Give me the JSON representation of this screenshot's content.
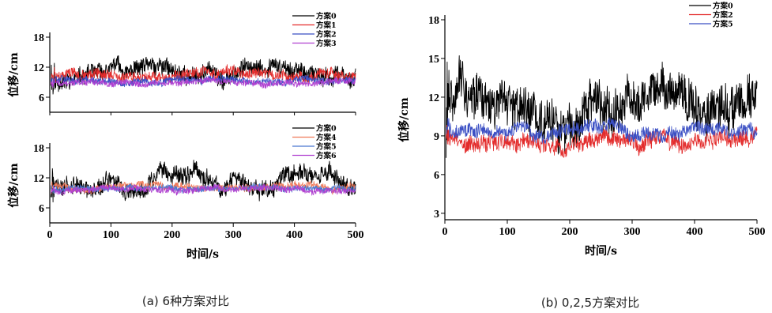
{
  "chart_data": [
    {
      "panel": "a-top",
      "type": "line",
      "xlabel": "",
      "ylabel": "位移/cm",
      "xlim": [
        0,
        500
      ],
      "ylim": [
        3,
        18
      ],
      "yticks": [
        6,
        12,
        18
      ],
      "xticks": [],
      "legend": "top-right",
      "series": [
        {
          "name": "方案0",
          "color": "#000000",
          "mean": 11.0,
          "amp": 2.2,
          "jitter": 1.6,
          "seed": 11
        },
        {
          "name": "方案1",
          "color": "#e32c2c",
          "mean": 10.5,
          "amp": 1.0,
          "jitter": 1.0,
          "seed": 12
        },
        {
          "name": "方案2",
          "color": "#3b4fc4",
          "mean": 9.3,
          "amp": 0.5,
          "jitter": 0.7,
          "seed": 13
        },
        {
          "name": "方案3",
          "color": "#b040d0",
          "mean": 8.9,
          "amp": 0.5,
          "jitter": 0.6,
          "seed": 14
        }
      ]
    },
    {
      "panel": "a-bottom",
      "type": "line",
      "xlabel": "时间/s",
      "ylabel": "位移/cm",
      "xlim": [
        0,
        500
      ],
      "ylim": [
        3,
        18
      ],
      "yticks": [
        6,
        12,
        18
      ],
      "xticks": [
        0,
        100,
        200,
        300,
        400,
        500
      ],
      "legend": "top-right",
      "series": [
        {
          "name": "方案0",
          "color": "#000000",
          "mean": 11.0,
          "amp": 2.2,
          "jitter": 1.6,
          "seed": 21
        },
        {
          "name": "方案4",
          "color": "#f07a5a",
          "mean": 10.2,
          "amp": 0.6,
          "jitter": 0.7,
          "seed": 22
        },
        {
          "name": "方案5",
          "color": "#4a78d0",
          "mean": 9.9,
          "amp": 0.5,
          "jitter": 0.6,
          "seed": 23
        },
        {
          "name": "方案6",
          "color": "#b040d0",
          "mean": 9.6,
          "amp": 0.5,
          "jitter": 0.6,
          "seed": 24
        }
      ]
    },
    {
      "panel": "b",
      "type": "line",
      "xlabel": "时间/s",
      "ylabel": "位移/cm",
      "xlim": [
        0,
        500
      ],
      "ylim": [
        2.5,
        18
      ],
      "yticks": [
        3,
        6,
        9,
        12,
        15,
        18
      ],
      "xticks": [
        0,
        100,
        200,
        300,
        400,
        500
      ],
      "legend": "top-right",
      "series": [
        {
          "name": "方案0",
          "color": "#000000",
          "mean": 11.5,
          "amp": 1.8,
          "jitter": 1.6,
          "seed": 31
        },
        {
          "name": "方案2",
          "color": "#e32c2c",
          "mean": 8.6,
          "amp": 0.6,
          "jitter": 0.6,
          "seed": 32
        },
        {
          "name": "方案5",
          "color": "#3b4fc4",
          "mean": 9.4,
          "amp": 0.5,
          "jitter": 0.5,
          "seed": 33
        }
      ]
    }
  ],
  "captions": {
    "a": "(a) 6种方案对比",
    "b": "(b) 0,2,5方案对比"
  }
}
